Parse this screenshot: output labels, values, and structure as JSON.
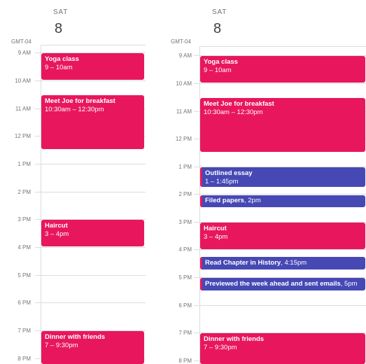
{
  "colors": {
    "event": "#e8175d",
    "task": "#4649b4",
    "grid": "#dadce0"
  },
  "left": {
    "day_name": "SAT",
    "day_number": "8",
    "timezone": "GMT-04",
    "hours": [
      "9 AM",
      "10 AM",
      "11 AM",
      "12 PM",
      "1 PM",
      "2 PM",
      "3 PM",
      "4 PM",
      "5 PM",
      "6 PM",
      "7 PM",
      "8 PM"
    ],
    "events": [
      {
        "title": "Yoga class",
        "time": "9 – 10am"
      },
      {
        "title": "Meet Joe for breakfast",
        "time": "10:30am – 12:30pm"
      },
      {
        "title": "Haircut",
        "time": "3 – 4pm"
      },
      {
        "title": "Dinner with friends",
        "time": "7 – 9:30pm"
      }
    ]
  },
  "right": {
    "day_name": "SAT",
    "day_number": "8",
    "timezone": "GMT-04",
    "hours": [
      "9 AM",
      "10 AM",
      "11 AM",
      "12 PM",
      "1 PM",
      "2 PM",
      "3 PM",
      "4 PM",
      "5 PM",
      "6 PM",
      "7 PM",
      "8 PM"
    ],
    "events": [
      {
        "title": "Yoga class",
        "time": "9 – 10am"
      },
      {
        "title": "Meet Joe for breakfast",
        "time": "10:30am – 12:30pm"
      },
      {
        "title": "Haircut",
        "time": "3 – 4pm"
      },
      {
        "title": "Dinner with friends",
        "time": "7 – 9:30pm"
      }
    ],
    "tasks": [
      {
        "title": "Outlined essay",
        "time": "1 – 1:45pm"
      },
      {
        "title": "Filed papers",
        "time": ", 2pm"
      },
      {
        "title": "Read Chapter in History",
        "time": ", 4:15pm"
      },
      {
        "title": "Previewed the week ahead and sent emails",
        "time": ", 5pm"
      }
    ]
  }
}
